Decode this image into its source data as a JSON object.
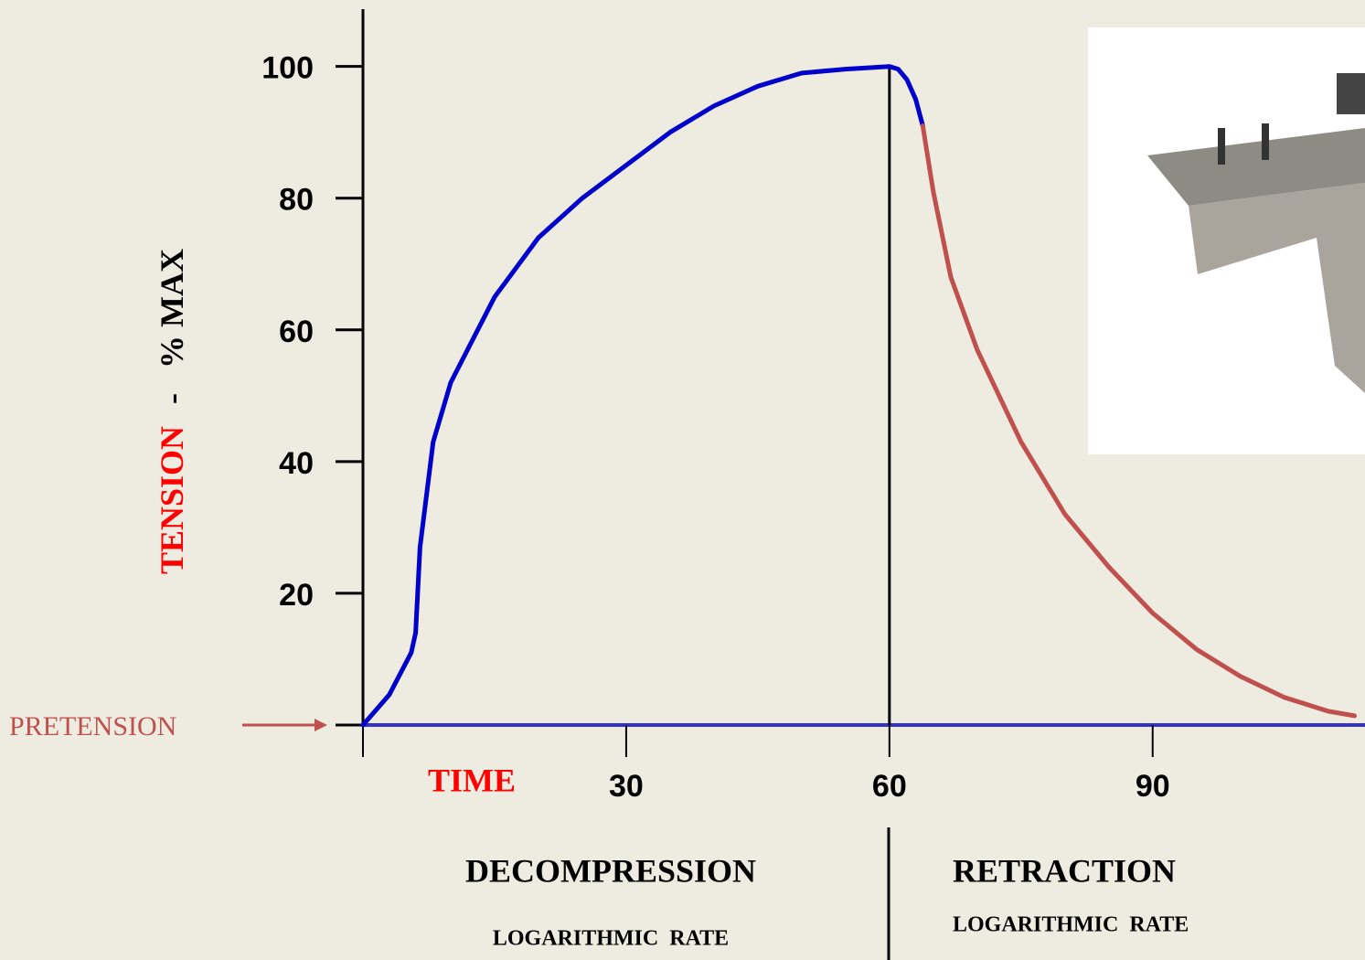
{
  "chart_data": {
    "type": "line",
    "ylabel": [
      "TENSION",
      "-   % MAX"
    ],
    "xlabel": "TIME",
    "annotation": "PRETENSION",
    "phases": [
      {
        "title": "DECOMPRESSION",
        "subtitle": "LOGARITHMIC  RATE"
      },
      {
        "title": "RETRACTION",
        "subtitle": "LOGARITHMIC  RATE"
      }
    ],
    "xlim": [
      0,
      114.2
    ],
    "ylim": [
      0,
      108.7
    ],
    "xticks": [
      30,
      60,
      90
    ],
    "yticks": [
      20,
      40,
      60,
      80,
      100
    ],
    "series": [
      {
        "color": "#0000cc",
        "x": [
          0,
          3,
          5.5,
          6,
          6.5,
          8,
          10,
          15,
          20,
          25,
          30,
          35,
          40,
          45,
          50,
          55,
          60,
          61,
          62,
          63,
          63.8
        ],
        "values": [
          0,
          4.6,
          11,
          14,
          27,
          43,
          52,
          65,
          74,
          80,
          85,
          90,
          94,
          97,
          99,
          99.6,
          100,
          99.6,
          98,
          95,
          91
        ]
      },
      {
        "color": "#c0504d",
        "x": [
          63.8,
          65,
          67,
          70,
          75,
          80,
          85,
          90,
          95,
          100,
          105,
          110,
          113
        ],
        "values": [
          91,
          81,
          68,
          57,
          43,
          32,
          24,
          17,
          11.5,
          7.4,
          4.2,
          2.1,
          1.4
        ]
      }
    ]
  }
}
